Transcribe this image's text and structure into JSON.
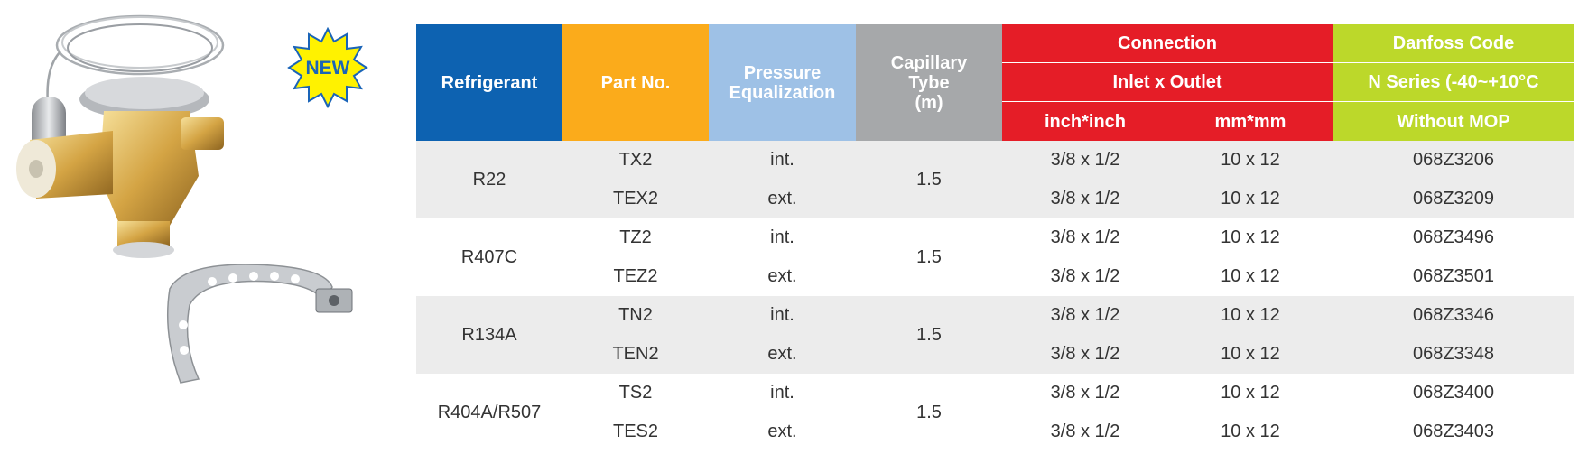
{
  "badge": {
    "text": "NEW"
  },
  "header": {
    "refrigerant": "Refrigerant",
    "part_no": "Part No.",
    "pressure_line1": "Pressure",
    "pressure_line2": "Equalization",
    "capillary_line1": "Capillary",
    "capillary_line2": "Tybe",
    "capillary_line3": "(m)",
    "connection": "Connection",
    "inlet_outlet": "Inlet x Outlet",
    "unit_inch": "inch*inch",
    "unit_mm": "mm*mm",
    "danfoss_code": "Danfoss Code",
    "n_series": "N Series (-40~+10°C",
    "without_mop": "Without MOP"
  },
  "groups": [
    {
      "refrigerant": "R22",
      "capillary": "1.5",
      "rows": [
        {
          "part": "TX2",
          "pressure": "int.",
          "inch": "3/8 x 1/2",
          "mm": "10 x 12",
          "code": "068Z3206"
        },
        {
          "part": "TEX2",
          "pressure": "ext.",
          "inch": "3/8 x 1/2",
          "mm": "10 x 12",
          "code": "068Z3209"
        }
      ]
    },
    {
      "refrigerant": "R407C",
      "capillary": "1.5",
      "rows": [
        {
          "part": "TZ2",
          "pressure": "int.",
          "inch": "3/8 x 1/2",
          "mm": "10 x 12",
          "code": "068Z3496"
        },
        {
          "part": "TEZ2",
          "pressure": "ext.",
          "inch": "3/8 x 1/2",
          "mm": "10 x 12",
          "code": "068Z3501"
        }
      ]
    },
    {
      "refrigerant": "R134A",
      "capillary": "1.5",
      "rows": [
        {
          "part": "TN2",
          "pressure": "int.",
          "inch": "3/8 x 1/2",
          "mm": "10 x 12",
          "code": "068Z3346"
        },
        {
          "part": "TEN2",
          "pressure": "ext.",
          "inch": "3/8 x 1/2",
          "mm": "10 x 12",
          "code": "068Z3348"
        }
      ]
    },
    {
      "refrigerant": "R404A/R507",
      "capillary": "1.5",
      "rows": [
        {
          "part": "TS2",
          "pressure": "int.",
          "inch": "3/8 x 1/2",
          "mm": "10 x 12",
          "code": "068Z3400"
        },
        {
          "part": "TES2",
          "pressure": "ext.",
          "inch": "3/8 x 1/2",
          "mm": "10 x 12",
          "code": "068Z3403"
        }
      ]
    }
  ]
}
